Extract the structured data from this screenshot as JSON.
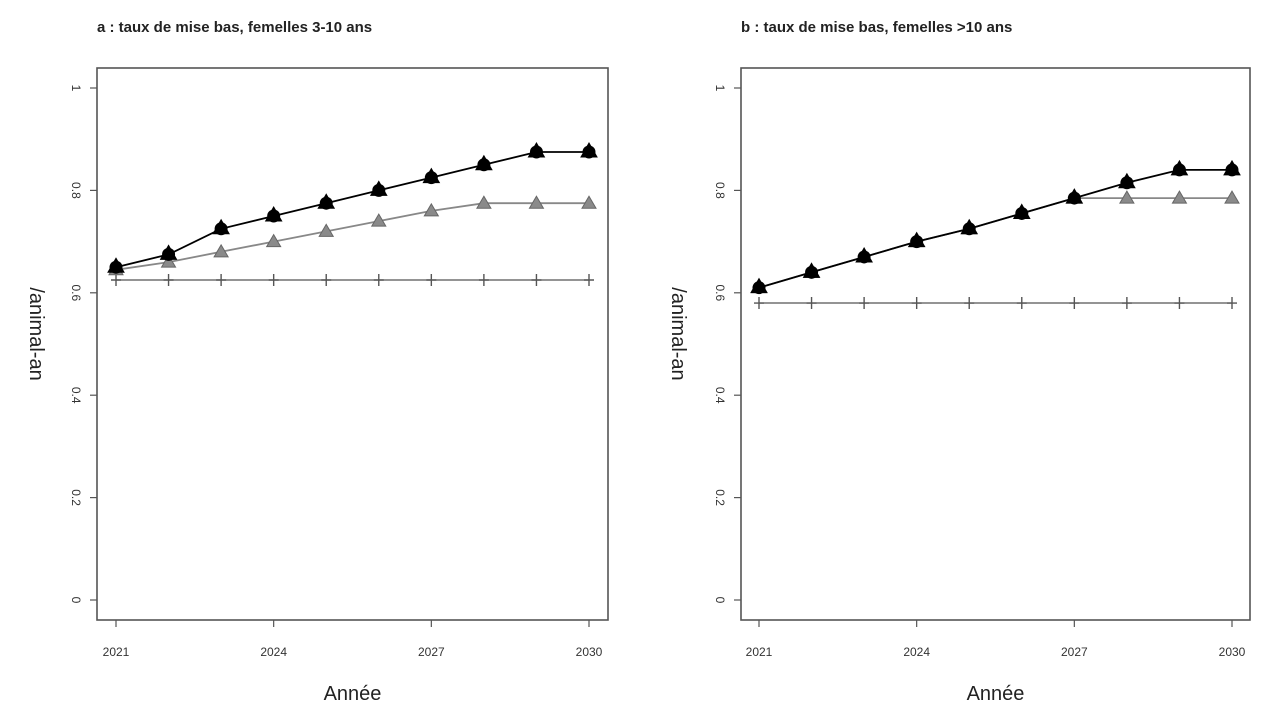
{
  "chart_data": [
    {
      "type": "line",
      "title": "a : taux de mise bas, femelles 3-10 ans",
      "xlabel": "Année",
      "ylabel": "/animal-an",
      "x": [
        2021,
        2022,
        2023,
        2024,
        2025,
        2026,
        2027,
        2028,
        2029,
        2030
      ],
      "xlim": [
        2021,
        2030
      ],
      "ylim": [
        0,
        1
      ],
      "xticks": [
        "2021",
        "2024",
        "2027",
        "2030"
      ],
      "yticks": [
        "0",
        "0.2",
        "0.4",
        "0.6",
        "0.8",
        "1"
      ],
      "grid": false,
      "series": [
        {
          "marker": "filled-triangle-circle",
          "color": "#000000",
          "values": [
            0.65,
            0.675,
            0.725,
            0.75,
            0.775,
            0.8,
            0.825,
            0.85,
            0.875,
            0.875
          ]
        },
        {
          "marker": "triangle",
          "color": "#888888",
          "values": [
            0.645,
            0.66,
            0.68,
            0.7,
            0.72,
            0.74,
            0.76,
            0.775,
            0.775,
            0.775
          ]
        },
        {
          "marker": "plus",
          "color": "#555555",
          "values": [
            0.625,
            0.625,
            0.625,
            0.625,
            0.625,
            0.625,
            0.625,
            0.625,
            0.625,
            0.625
          ]
        }
      ]
    },
    {
      "type": "line",
      "title": "b : taux de mise bas, femelles >10 ans",
      "xlabel": "Année",
      "ylabel": "/animal-an",
      "x": [
        2021,
        2022,
        2023,
        2024,
        2025,
        2026,
        2027,
        2028,
        2029,
        2030
      ],
      "xlim": [
        2021,
        2030
      ],
      "ylim": [
        0,
        1
      ],
      "xticks": [
        "2021",
        "2024",
        "2027",
        "2030"
      ],
      "yticks": [
        "0",
        "0.2",
        "0.4",
        "0.6",
        "0.8",
        "1"
      ],
      "grid": false,
      "series": [
        {
          "marker": "filled-triangle-circle",
          "color": "#000000",
          "values": [
            0.61,
            0.64,
            0.67,
            0.7,
            0.725,
            0.755,
            0.785,
            0.815,
            0.84,
            0.84
          ]
        },
        {
          "marker": "triangle",
          "color": "#888888",
          "values": [
            0.61,
            0.64,
            0.67,
            0.7,
            0.725,
            0.755,
            0.785,
            0.785,
            0.785,
            0.785
          ]
        },
        {
          "marker": "plus",
          "color": "#555555",
          "values": [
            0.58,
            0.58,
            0.58,
            0.58,
            0.58,
            0.58,
            0.58,
            0.58,
            0.58,
            0.58
          ]
        }
      ]
    }
  ]
}
